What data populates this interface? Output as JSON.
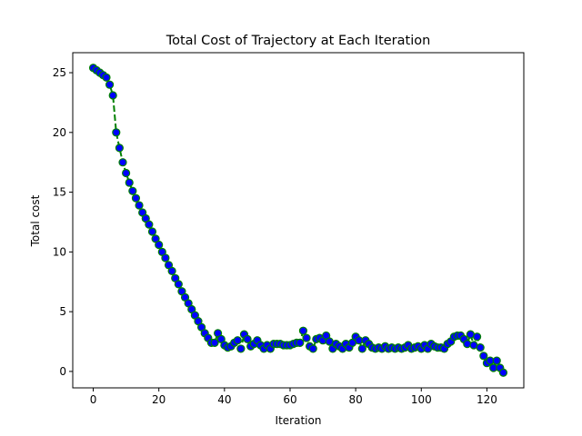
{
  "chart_data": {
    "type": "line",
    "title": "Total Cost of Trajectory at Each Iteration",
    "x_label": "Iteration",
    "y_label": "Total cost",
    "x": [
      0,
      1,
      2,
      3,
      4,
      5,
      6,
      7,
      8,
      9,
      10,
      11,
      12,
      13,
      14,
      15,
      16,
      17,
      18,
      19,
      20,
      21,
      22,
      23,
      24,
      25,
      26,
      27,
      28,
      29,
      30,
      31,
      32,
      33,
      34,
      35,
      36,
      37,
      38,
      39,
      40,
      41,
      42,
      43,
      44,
      45,
      46,
      47,
      48,
      49,
      50,
      51,
      52,
      53,
      54,
      55,
      56,
      57,
      58,
      59,
      60,
      61,
      62,
      63,
      64,
      65,
      66,
      67,
      68,
      69,
      70,
      71,
      72,
      73,
      74,
      75,
      76,
      77,
      78,
      79,
      80,
      81,
      82,
      83,
      84,
      85,
      86,
      87,
      88,
      89,
      90,
      91,
      92,
      93,
      94,
      95,
      96,
      97,
      98,
      99,
      100,
      101,
      102,
      103,
      104,
      105,
      106,
      107,
      108,
      109,
      110,
      111,
      112,
      113,
      114,
      115,
      116,
      117,
      118,
      119,
      120,
      121,
      122,
      123,
      124,
      125
    ],
    "series": [
      {
        "line_color": "#008000",
        "marker_color": "#0000ff",
        "values": [
          25.4,
          25.2,
          25.0,
          24.8,
          24.6,
          24.0,
          23.1,
          20.0,
          18.7,
          17.5,
          16.6,
          15.8,
          15.1,
          14.5,
          13.9,
          13.3,
          12.8,
          12.3,
          11.7,
          11.1,
          10.6,
          10.0,
          9.5,
          8.9,
          8.4,
          7.8,
          7.3,
          6.7,
          6.2,
          5.7,
          5.2,
          4.7,
          4.2,
          3.7,
          3.2,
          2.8,
          2.4,
          2.4,
          3.2,
          2.7,
          2.2,
          2.0,
          2.1,
          2.4,
          2.6,
          1.9,
          3.1,
          2.7,
          2.1,
          2.3,
          2.6,
          2.2,
          1.9,
          2.2,
          1.9,
          2.3,
          2.3,
          2.3,
          2.2,
          2.2,
          2.2,
          2.3,
          2.4,
          2.4,
          3.4,
          2.8,
          2.1,
          1.9,
          2.7,
          2.8,
          2.6,
          3.0,
          2.5,
          1.9,
          2.3,
          2.1,
          1.9,
          2.3,
          2.0,
          2.4,
          2.9,
          2.6,
          1.9,
          2.6,
          2.3,
          2.0,
          1.9,
          2.0,
          1.9,
          2.1,
          1.9,
          2.0,
          1.9,
          2.0,
          1.9,
          2.0,
          2.2,
          1.9,
          2.0,
          2.1,
          1.9,
          2.2,
          1.9,
          2.3,
          2.1,
          2.0,
          2.0,
          1.9,
          2.3,
          2.5,
          2.9,
          3.0,
          3.0,
          2.7,
          2.3,
          3.1,
          2.2,
          2.9,
          2.0,
          1.3,
          0.7,
          0.9,
          0.3,
          0.9,
          0.3,
          -0.1
        ]
      }
    ],
    "xlim": [
      -6.25,
      131.25
    ],
    "xticks": [
      0,
      20,
      40,
      60,
      80,
      100,
      120
    ],
    "ylim": [
      -1.375,
      26.675
    ],
    "yticks": [
      0,
      5,
      10,
      15,
      20,
      25
    ]
  }
}
